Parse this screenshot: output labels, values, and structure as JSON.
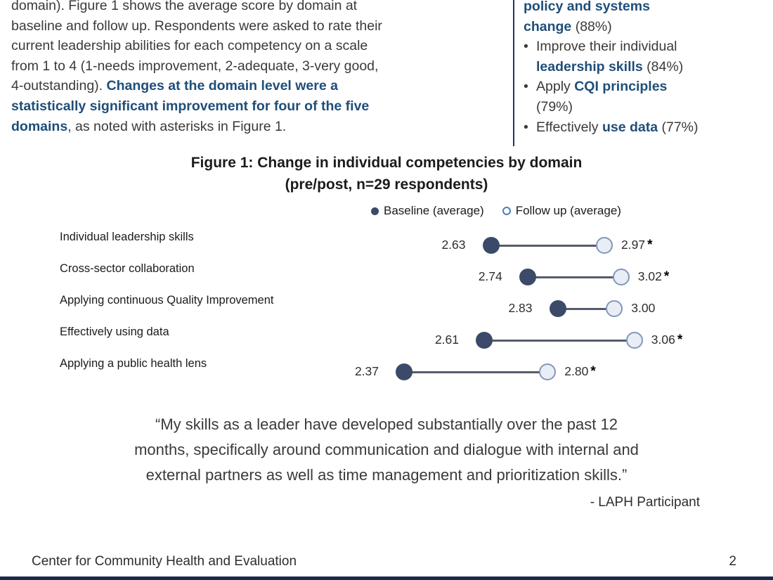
{
  "colors": {
    "accent_blue": "#1F4E79",
    "body_text": "#3A3A3A",
    "baseline_dot": "#3B4A68",
    "followup_dot_fill": "#E9EDF5",
    "followup_dot_border": "#8397BA",
    "connector": "#555C6B",
    "divider": "#1F3864",
    "bottom_bar": "#1B2A4A"
  },
  "intro": {
    "lines": [
      [
        {
          "t": "domain). Figure 1 shows the average score by domain at",
          "s": "n"
        }
      ],
      [
        {
          "t": "baseline and follow up. Respondents were asked to rate their",
          "s": "n"
        }
      ],
      [
        {
          "t": "current leadership abilities for each competency on a scale",
          "s": "n"
        }
      ],
      [
        {
          "t": "from 1 to 4 (1-needs improvement, 2-adequate, 3-very good,",
          "s": "n"
        }
      ],
      [
        {
          "t": "4-outstanding). ",
          "s": "n"
        },
        {
          "t": "Changes at the domain level were a",
          "s": "bb"
        }
      ],
      [
        {
          "t": "statistically significant improvement for four of the five",
          "s": "bb"
        }
      ],
      [
        {
          "t": "domains",
          "s": "bb"
        },
        {
          "t": ", as noted with asterisks in Figure 1.",
          "s": "n"
        }
      ]
    ]
  },
  "outcomes": {
    "items": [
      {
        "bullet": false,
        "lines": [
          [
            {
              "t": "policy and systems",
              "s": "bb"
            }
          ],
          [
            {
              "t": "change",
              "s": "bb"
            },
            {
              "t": " (88%)",
              "s": "n"
            }
          ]
        ]
      },
      {
        "bullet": true,
        "lines": [
          [
            {
              "t": "Improve their individual",
              "s": "n"
            }
          ],
          [
            {
              "t": "leadership skills",
              "s": "bb"
            },
            {
              "t": " (84%)",
              "s": "n"
            }
          ]
        ]
      },
      {
        "bullet": true,
        "lines": [
          [
            {
              "t": "Apply ",
              "s": "n"
            },
            {
              "t": "CQI principles",
              "s": "bb"
            }
          ],
          [
            {
              "t": "(79%)",
              "s": "n"
            }
          ]
        ]
      },
      {
        "bullet": true,
        "lines": [
          [
            {
              "t": "Effectively ",
              "s": "n"
            },
            {
              "t": "use data",
              "s": "bb"
            },
            {
              "t": " (77%)",
              "s": "n"
            }
          ]
        ]
      }
    ]
  },
  "chart_data": {
    "type": "dumbbell",
    "title": "Figure 1: Change in individual competencies by domain",
    "subtitle": "(pre/post, n=29 respondents)",
    "legend": [
      "Baseline (average)",
      "Follow up (average)"
    ],
    "categories": [
      "Individual leadership skills",
      "Cross-sector collaboration",
      "Applying continuous Quality Improvement",
      "Effectively using data",
      "Applying a public health lens"
    ],
    "series": [
      {
        "name": "Baseline (average)",
        "marker": "filled",
        "values": [
          2.63,
          2.74,
          2.83,
          2.61,
          2.37
        ],
        "labels": [
          "2.63",
          "2.74",
          "2.83",
          "2.61",
          "2.37"
        ]
      },
      {
        "name": "Follow up (average)",
        "marker": "open",
        "values": [
          2.97,
          3.02,
          3.0,
          3.06,
          2.8
        ],
        "labels": [
          "2.97",
          "3.02",
          "3.00",
          "3.06",
          "2.80"
        ]
      }
    ],
    "significant": [
      true,
      true,
      false,
      true,
      true
    ],
    "significance_marker": "*",
    "x_range": [
      2.3,
      3.2
    ],
    "scale_note": "ratings 1-4: 1-needs improvement, 2-adequate, 3-very good, 4-outstanding"
  },
  "quote": {
    "lines": [
      "“My skills as a leader have developed substantially over the past 12",
      "months, specifically around communication and dialogue with internal and",
      "external partners as well as time management and prioritization skills.”"
    ],
    "attribution": "- LAPH Participant"
  },
  "footer": {
    "org": "Center for Community Health and Evaluation",
    "page_number": "2"
  }
}
